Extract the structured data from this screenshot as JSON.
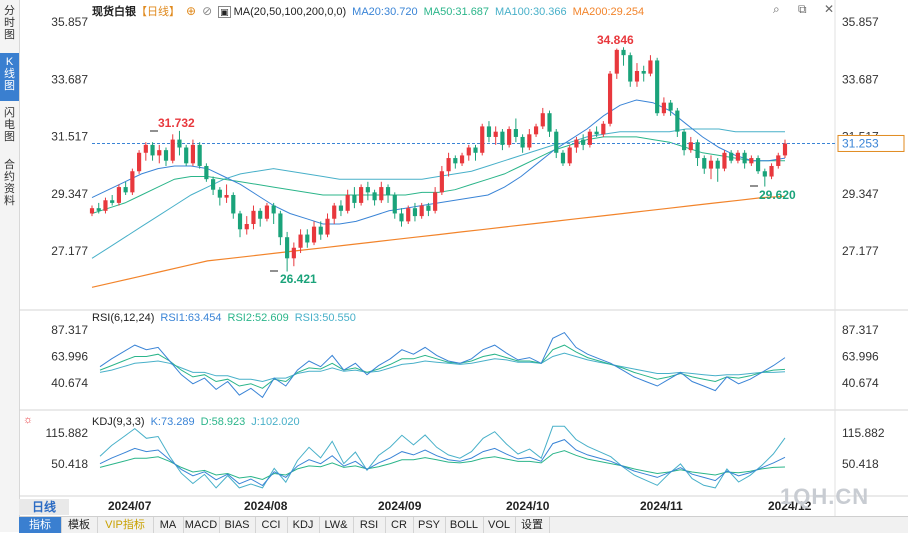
{
  "sidebar": {
    "tabs": [
      {
        "label": "分时图",
        "active": false
      },
      {
        "label": "K线图",
        "active": true
      },
      {
        "label": "闪电图",
        "active": false
      },
      {
        "label": "合约资料",
        "active": false
      }
    ]
  },
  "header": {
    "name": "现货白银",
    "period": "【日线】",
    "ma_label": "MA(20,50,100,200,0,0)",
    "ma20": "MA20:30.720",
    "ma50": "MA50:31.687",
    "ma100": "MA100:30.366",
    "ma200": "MA200:29.254"
  },
  "price_axis": {
    "ticks": [
      "35.857",
      "33.687",
      "31.517",
      "29.347",
      "27.177"
    ],
    "current": "31.253"
  },
  "annotations": {
    "high": "34.846",
    "left_high": "31.732",
    "low": "26.421",
    "recent_low": "29.620"
  },
  "rsi": {
    "label": "RSI(6,12,24)",
    "rsi1": "RSI1:63.454",
    "rsi2": "RSI2:52.609",
    "rsi3": "RSI3:50.550",
    "ticks": [
      "87.317",
      "63.996",
      "40.674"
    ]
  },
  "kdj": {
    "label": "KDJ(9,3,3)",
    "k": "K:73.289",
    "d": "D:58.923",
    "j": "J:102.020",
    "ticks": [
      "115.882",
      "50.418"
    ]
  },
  "date_axis": [
    "2024/07",
    "2024/08",
    "2024/09",
    "2024/10",
    "2024/11",
    "2024/12"
  ],
  "period_button": "日线",
  "watermark": "1QH.CN",
  "bottom_tabs": [
    "指标",
    "模板",
    "VIP指标",
    "MA",
    "MACD",
    "BIAS",
    "CCI",
    "KDJ",
    "LW&",
    "RSI",
    "CR",
    "PSY",
    "BOLL",
    "VOL",
    "设置"
  ],
  "icons": [
    "plus-icon",
    "target-icon",
    "search-icon",
    "restore-icon",
    "close-icon",
    "kdj-settings-icon"
  ],
  "colors": {
    "up": "#e8383d",
    "down": "#1aa37a",
    "ma20": "#3a84d6",
    "ma50": "#2bb58a",
    "ma100": "#48b0c9",
    "ma200": "#f2842b",
    "rsi1": "#3a84d6",
    "rsi2": "#2bb58a",
    "rsi3": "#48b0c9",
    "current_price": "#3a84d6"
  },
  "chart_data": {
    "type": "candlestick",
    "price_range": [
      25.8,
      36.4
    ],
    "months": [
      "2024/07",
      "2024/08",
      "2024/09",
      "2024/10",
      "2024/11",
      "2024/12"
    ],
    "candles": [
      [
        28.6,
        28.8,
        28.5,
        28.9
      ],
      [
        28.8,
        28.7,
        28.6,
        29.0
      ],
      [
        28.7,
        29.1,
        28.6,
        29.2
      ],
      [
        29.1,
        29.0,
        28.9,
        29.3
      ],
      [
        29.0,
        29.6,
        28.9,
        29.7
      ],
      [
        29.6,
        29.4,
        29.3,
        29.8
      ],
      [
        29.4,
        30.2,
        29.3,
        30.3
      ],
      [
        30.2,
        30.9,
        30.1,
        31.0
      ],
      [
        30.9,
        31.2,
        30.6,
        31.3
      ],
      [
        31.2,
        30.8,
        30.6,
        31.3
      ],
      [
        30.8,
        31.0,
        30.5,
        31.2
      ],
      [
        31.0,
        30.6,
        30.4,
        31.1
      ],
      [
        30.6,
        31.4,
        30.5,
        31.6
      ],
      [
        31.4,
        31.1,
        30.8,
        31.73
      ],
      [
        31.1,
        30.5,
        30.4,
        31.2
      ],
      [
        30.5,
        31.2,
        30.4,
        31.4
      ],
      [
        31.2,
        30.4,
        30.3,
        31.3
      ],
      [
        30.4,
        29.9,
        29.8,
        30.5
      ],
      [
        29.9,
        29.5,
        29.3,
        30.0
      ],
      [
        29.5,
        29.2,
        28.9,
        29.6
      ],
      [
        29.2,
        29.3,
        29.0,
        29.7
      ],
      [
        29.3,
        28.6,
        28.4,
        29.4
      ],
      [
        28.6,
        28.0,
        27.7,
        28.7
      ],
      [
        28.0,
        28.2,
        27.8,
        28.5
      ],
      [
        28.2,
        28.7,
        28.0,
        28.9
      ],
      [
        28.7,
        28.4,
        28.1,
        28.8
      ],
      [
        28.4,
        28.9,
        28.3,
        29.0
      ],
      [
        28.9,
        28.6,
        28.2,
        29.0
      ],
      [
        28.6,
        27.7,
        27.4,
        28.7
      ],
      [
        27.7,
        26.9,
        26.4,
        27.9
      ],
      [
        26.9,
        27.3,
        26.6,
        27.5
      ],
      [
        27.3,
        27.8,
        27.1,
        28.0
      ],
      [
        27.8,
        27.5,
        27.3,
        28.0
      ],
      [
        27.5,
        28.1,
        27.4,
        28.3
      ],
      [
        28.1,
        27.8,
        27.6,
        28.3
      ],
      [
        27.8,
        28.4,
        27.7,
        28.6
      ],
      [
        28.4,
        28.9,
        28.2,
        29.0
      ],
      [
        28.9,
        28.7,
        28.5,
        29.1
      ],
      [
        28.7,
        29.3,
        28.6,
        29.5
      ],
      [
        29.3,
        29.0,
        28.8,
        29.6
      ],
      [
        29.0,
        29.6,
        28.9,
        29.7
      ],
      [
        29.6,
        29.4,
        29.1,
        29.8
      ],
      [
        29.4,
        29.1,
        28.9,
        29.5
      ],
      [
        29.1,
        29.6,
        29.0,
        29.8
      ],
      [
        29.6,
        29.3,
        29.0,
        29.7
      ],
      [
        29.3,
        28.6,
        28.4,
        29.4
      ],
      [
        28.6,
        28.3,
        28.1,
        28.8
      ],
      [
        28.3,
        28.8,
        28.2,
        28.9
      ],
      [
        28.8,
        28.5,
        28.3,
        29.0
      ],
      [
        28.5,
        28.9,
        28.4,
        29.0
      ],
      [
        28.9,
        28.7,
        28.5,
        29.0
      ],
      [
        28.7,
        29.4,
        28.6,
        29.6
      ],
      [
        29.4,
        30.2,
        29.3,
        30.4
      ],
      [
        30.2,
        30.7,
        30.0,
        30.9
      ],
      [
        30.7,
        30.5,
        30.3,
        30.8
      ],
      [
        30.5,
        30.8,
        30.4,
        30.9
      ],
      [
        30.8,
        31.1,
        30.6,
        31.2
      ],
      [
        31.1,
        30.9,
        30.6,
        31.2
      ],
      [
        30.9,
        31.9,
        30.8,
        32.0
      ],
      [
        31.9,
        31.5,
        31.3,
        32.1
      ],
      [
        31.5,
        31.7,
        31.2,
        31.9
      ],
      [
        31.7,
        31.2,
        31.0,
        31.8
      ],
      [
        31.2,
        31.8,
        31.1,
        31.9
      ],
      [
        31.8,
        31.5,
        31.3,
        32.2
      ],
      [
        31.5,
        31.1,
        30.9,
        31.6
      ],
      [
        31.1,
        31.6,
        31.0,
        31.8
      ],
      [
        31.6,
        31.9,
        31.5,
        32.0
      ],
      [
        31.9,
        32.4,
        31.8,
        32.6
      ],
      [
        32.4,
        31.7,
        31.5,
        32.5
      ],
      [
        31.7,
        30.9,
        30.7,
        31.8
      ],
      [
        30.9,
        30.5,
        30.4,
        31.0
      ],
      [
        30.5,
        31.1,
        30.4,
        31.2
      ],
      [
        31.1,
        31.4,
        30.9,
        31.5
      ],
      [
        31.4,
        31.2,
        31.0,
        31.6
      ],
      [
        31.2,
        31.7,
        31.1,
        31.8
      ],
      [
        31.7,
        31.6,
        31.5,
        31.9
      ],
      [
        31.6,
        32.0,
        31.5,
        32.1
      ],
      [
        32.0,
        33.9,
        31.9,
        34.0
      ],
      [
        33.9,
        34.8,
        33.7,
        34.85
      ],
      [
        34.8,
        34.6,
        34.2,
        34.9
      ],
      [
        34.6,
        33.6,
        33.4,
        34.7
      ],
      [
        33.6,
        34.0,
        33.4,
        34.3
      ],
      [
        34.0,
        33.9,
        33.6,
        34.2
      ],
      [
        33.9,
        34.4,
        33.8,
        34.6
      ],
      [
        34.4,
        32.4,
        32.3,
        34.5
      ],
      [
        32.4,
        32.8,
        32.3,
        33.0
      ],
      [
        32.8,
        32.5,
        32.3,
        32.9
      ],
      [
        32.5,
        31.7,
        31.5,
        32.6
      ],
      [
        31.7,
        31.0,
        30.8,
        31.8
      ],
      [
        31.0,
        31.3,
        30.9,
        31.5
      ],
      [
        31.3,
        30.7,
        30.4,
        31.4
      ],
      [
        30.7,
        30.3,
        30.1,
        30.8
      ],
      [
        30.3,
        30.6,
        29.9,
        30.8
      ],
      [
        30.6,
        30.3,
        29.8,
        30.7
      ],
      [
        30.3,
        30.9,
        30.2,
        31.0
      ],
      [
        30.9,
        30.6,
        30.5,
        31.0
      ],
      [
        30.6,
        30.9,
        30.5,
        31.0
      ],
      [
        30.9,
        30.5,
        30.3,
        31.0
      ],
      [
        30.5,
        30.7,
        30.4,
        30.8
      ],
      [
        30.7,
        30.2,
        30.1,
        30.8
      ],
      [
        30.2,
        30.0,
        29.62,
        30.3
      ],
      [
        30.0,
        30.4,
        29.9,
        30.5
      ],
      [
        30.4,
        30.8,
        30.3,
        30.9
      ],
      [
        30.8,
        31.25,
        30.7,
        31.4
      ]
    ],
    "ma20": [
      29.2,
      29.5,
      29.8,
      30.1,
      30.3,
      30.4,
      30.4,
      30.3,
      30.0,
      29.7,
      29.3,
      28.9,
      28.6,
      28.4,
      28.2,
      28.2,
      28.3,
      28.5,
      28.7,
      28.8,
      28.9,
      29.0,
      29.1,
      29.2,
      29.3,
      29.6,
      30.0,
      30.5,
      31.0,
      31.4,
      31.8,
      32.3,
      32.7,
      32.9,
      32.8,
      32.5,
      32.0,
      31.5,
      31.1,
      30.8,
      30.6,
      30.6,
      30.7
    ],
    "ma50": [
      28.6,
      28.8,
      29.0,
      29.3,
      29.6,
      29.9,
      30.0,
      30.0,
      29.9,
      29.8,
      29.7,
      29.6,
      29.5,
      29.4,
      29.3,
      29.3,
      29.3,
      29.3,
      29.3,
      29.3,
      29.4,
      29.4,
      29.5,
      29.7,
      29.9,
      30.1,
      30.4,
      30.7,
      31.0,
      31.2,
      31.4,
      31.5,
      31.5,
      31.5,
      31.4,
      31.3,
      31.1,
      30.9,
      30.8,
      30.7,
      30.6,
      30.6,
      30.6
    ],
    "ma100": [
      26.9,
      27.3,
      27.7,
      28.1,
      28.5,
      28.9,
      29.3,
      29.6,
      29.9,
      30.1,
      30.2,
      30.3,
      30.2,
      30.1,
      30.0,
      29.9,
      29.9,
      29.9,
      29.9,
      29.9,
      29.9,
      30.0,
      30.1,
      30.2,
      30.4,
      30.6,
      30.8,
      31.0,
      31.2,
      31.3,
      31.5,
      31.6,
      31.7,
      31.7,
      31.7,
      31.7,
      31.8,
      31.8,
      31.8,
      31.7,
      31.7,
      31.7,
      31.7
    ],
    "ma200": [
      25.8,
      26.0,
      26.2,
      26.4,
      26.6,
      26.8,
      26.9,
      27.0,
      27.1,
      27.2,
      27.3,
      27.4,
      27.5,
      27.6,
      27.7,
      27.8,
      27.9,
      28.0,
      28.1,
      28.2,
      28.3,
      28.4,
      28.5,
      28.6,
      28.7,
      28.8,
      28.9,
      29.0,
      29.1,
      29.2,
      29.25
    ],
    "rsi_range": [
      25,
      95
    ],
    "rsi1": [
      55,
      62,
      68,
      74,
      70,
      72,
      60,
      48,
      40,
      45,
      35,
      42,
      30,
      36,
      28,
      45,
      38,
      52,
      60,
      55,
      65,
      52,
      58,
      48,
      56,
      62,
      70,
      66,
      72,
      65,
      60,
      58,
      62,
      70,
      74,
      67,
      61,
      63,
      58,
      80,
      85,
      72,
      66,
      62,
      58,
      52,
      46,
      42,
      38,
      44,
      50,
      42,
      38,
      34,
      46,
      40,
      44,
      50,
      56,
      63
    ],
    "rsi2": [
      52,
      56,
      60,
      64,
      64,
      66,
      60,
      52,
      46,
      48,
      42,
      44,
      38,
      40,
      36,
      44,
      42,
      50,
      54,
      53,
      58,
      52,
      54,
      50,
      53,
      57,
      62,
      62,
      65,
      62,
      59,
      58,
      60,
      64,
      66,
      63,
      60,
      60,
      58,
      70,
      74,
      68,
      63,
      60,
      57,
      54,
      50,
      47,
      44,
      46,
      49,
      46,
      44,
      42,
      46,
      45,
      47,
      50,
      52,
      52.6
    ],
    "rsi3": [
      50,
      52,
      55,
      58,
      59,
      60,
      58,
      54,
      50,
      50,
      47,
      47,
      44,
      44,
      42,
      45,
      45,
      49,
      51,
      51,
      54,
      51,
      52,
      50,
      51,
      54,
      57,
      58,
      60,
      59,
      58,
      57,
      58,
      60,
      62,
      61,
      59,
      59,
      58,
      64,
      67,
      64,
      61,
      59,
      57,
      55,
      53,
      51,
      49,
      49,
      50,
      49,
      48,
      47,
      48,
      48,
      49,
      50,
      50,
      50.5
    ]
  }
}
